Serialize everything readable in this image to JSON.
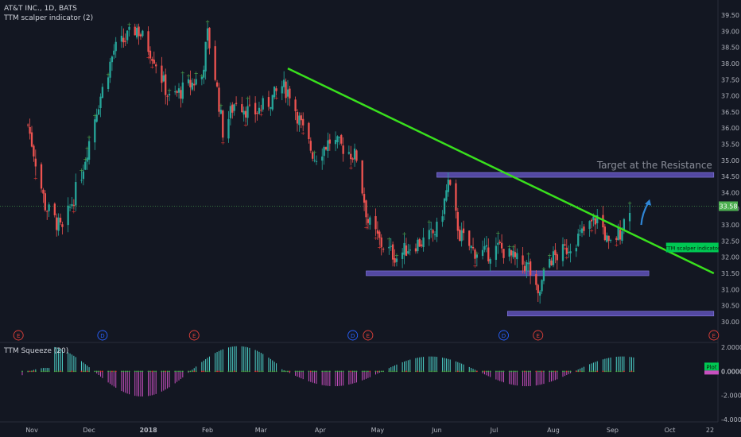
{
  "header": {
    "symbol": "AT&T INC., 1D, BATS",
    "indicator": "TTM scalper indicator (2)",
    "lower_indicator": "TTM Squeeze (20)"
  },
  "chart_data": {
    "type": "candlestick",
    "ylim": [
      29.8,
      39.6
    ],
    "y_ticks": [
      "30.00",
      "30.50",
      "31.00",
      "31.50",
      "32.00",
      "32.50",
      "33.00",
      "33.50",
      "34.00",
      "34.50",
      "35.00",
      "35.50",
      "36.00",
      "36.50",
      "37.00",
      "37.50",
      "38.00",
      "38.50",
      "39.00",
      "39.50"
    ],
    "x_ticks": [
      "Nov",
      "Dec",
      "2018",
      "Feb",
      "Mar",
      "Apr",
      "May",
      "Jun",
      "Jul",
      "Aug",
      "Sep",
      "Oct",
      "22"
    ],
    "x_tick_dates": [
      "2017-11-01",
      "2017-12-01",
      "2018-01-01",
      "2018-02-01",
      "2018-03-01",
      "2018-04-01",
      "2018-05-01",
      "2018-06-01",
      "2018-07-01",
      "2018-08-01",
      "2018-09-01",
      "2018-10-01",
      "2018-10-22"
    ],
    "last_price": "33.58",
    "trendline": {
      "from": {
        "date": "2018-03-15",
        "price": 37.85
      },
      "to": {
        "date": "2018-10-24",
        "price": 31.5
      }
    },
    "zones": [
      {
        "from": "2018-06-01",
        "to": "2018-10-24",
        "price": 34.55
      },
      {
        "from": "2018-04-25",
        "to": "2018-09-20",
        "price": 31.5
      },
      {
        "from": "2018-07-08",
        "to": "2018-10-24",
        "price": 30.25
      }
    ],
    "annotations": [
      "Target at the Resistance"
    ],
    "indicator_label": "TTM scalper indicator",
    "events": [
      "E",
      "D",
      "E",
      "D",
      "E",
      "D",
      "E",
      "E"
    ],
    "squeeze": {
      "ylim": [
        -4.2,
        2.4
      ],
      "y_ticks": [
        "2.0000",
        "0.0000",
        "-2.0000",
        "-4.0000"
      ],
      "last_value": "0.0000",
      "plot_label": "Plot"
    },
    "series": [
      {
        "date": "2017-10-30",
        "value": 36.1
      },
      {
        "date": "2017-11-08",
        "value": 33.6
      },
      {
        "date": "2017-11-17",
        "value": 32.8
      },
      {
        "date": "2017-11-27",
        "value": 34.6
      },
      {
        "date": "2017-12-05",
        "value": 36.6
      },
      {
        "date": "2017-12-14",
        "value": 38.4
      },
      {
        "date": "2017-12-26",
        "value": 39.1
      },
      {
        "date": "2018-01-04",
        "value": 38.2
      },
      {
        "date": "2018-01-12",
        "value": 36.9
      },
      {
        "date": "2018-01-22",
        "value": 37.3
      },
      {
        "date": "2018-01-29",
        "value": 37.6
      },
      {
        "date": "2018-02-01",
        "value": 38.9
      },
      {
        "date": "2018-02-05",
        "value": 37.6
      },
      {
        "date": "2018-02-09",
        "value": 35.9
      },
      {
        "date": "2018-02-16",
        "value": 36.9
      },
      {
        "date": "2018-02-24",
        "value": 36.4
      },
      {
        "date": "2018-03-05",
        "value": 36.8
      },
      {
        "date": "2018-03-12",
        "value": 37.3
      },
      {
        "date": "2018-03-16",
        "value": 37.1
      },
      {
        "date": "2018-03-23",
        "value": 35.9
      },
      {
        "date": "2018-03-29",
        "value": 35.1
      },
      {
        "date": "2018-04-06",
        "value": 35.6
      },
      {
        "date": "2018-04-13",
        "value": 35.4
      },
      {
        "date": "2018-04-20",
        "value": 35.1
      },
      {
        "date": "2018-04-26",
        "value": 33.1
      },
      {
        "date": "2018-05-03",
        "value": 32.4
      },
      {
        "date": "2018-05-11",
        "value": 32.0
      },
      {
        "date": "2018-05-19",
        "value": 32.4
      },
      {
        "date": "2018-05-26",
        "value": 32.5
      },
      {
        "date": "2018-06-02",
        "value": 32.9
      },
      {
        "date": "2018-06-07",
        "value": 34.3
      },
      {
        "date": "2018-06-13",
        "value": 32.7
      },
      {
        "date": "2018-06-20",
        "value": 32.2
      },
      {
        "date": "2018-06-27",
        "value": 32.1
      },
      {
        "date": "2018-07-04",
        "value": 32.3
      },
      {
        "date": "2018-07-12",
        "value": 31.9
      },
      {
        "date": "2018-07-19",
        "value": 31.7
      },
      {
        "date": "2018-07-24",
        "value": 30.7
      },
      {
        "date": "2018-07-29",
        "value": 31.9
      },
      {
        "date": "2018-08-05",
        "value": 32.1
      },
      {
        "date": "2018-08-12",
        "value": 32.5
      },
      {
        "date": "2018-08-19",
        "value": 32.9
      },
      {
        "date": "2018-08-25",
        "value": 33.3
      },
      {
        "date": "2018-08-30",
        "value": 32.3
      },
      {
        "date": "2018-09-05",
        "value": 32.8
      },
      {
        "date": "2018-09-10",
        "value": 33.6
      }
    ]
  },
  "colors": {
    "background": "#131722",
    "up": "#26a69a",
    "down": "#ef5350",
    "trendline": "#39e01d",
    "zone": "#6a5acd",
    "zone_border": "#8a7fe8",
    "arrow": "#2f86d6",
    "scalper_up": "#4caf50",
    "scalper_down": "#e53935",
    "squeeze_pos": "#4dd0c8",
    "squeeze_neg": "#c850c0"
  }
}
